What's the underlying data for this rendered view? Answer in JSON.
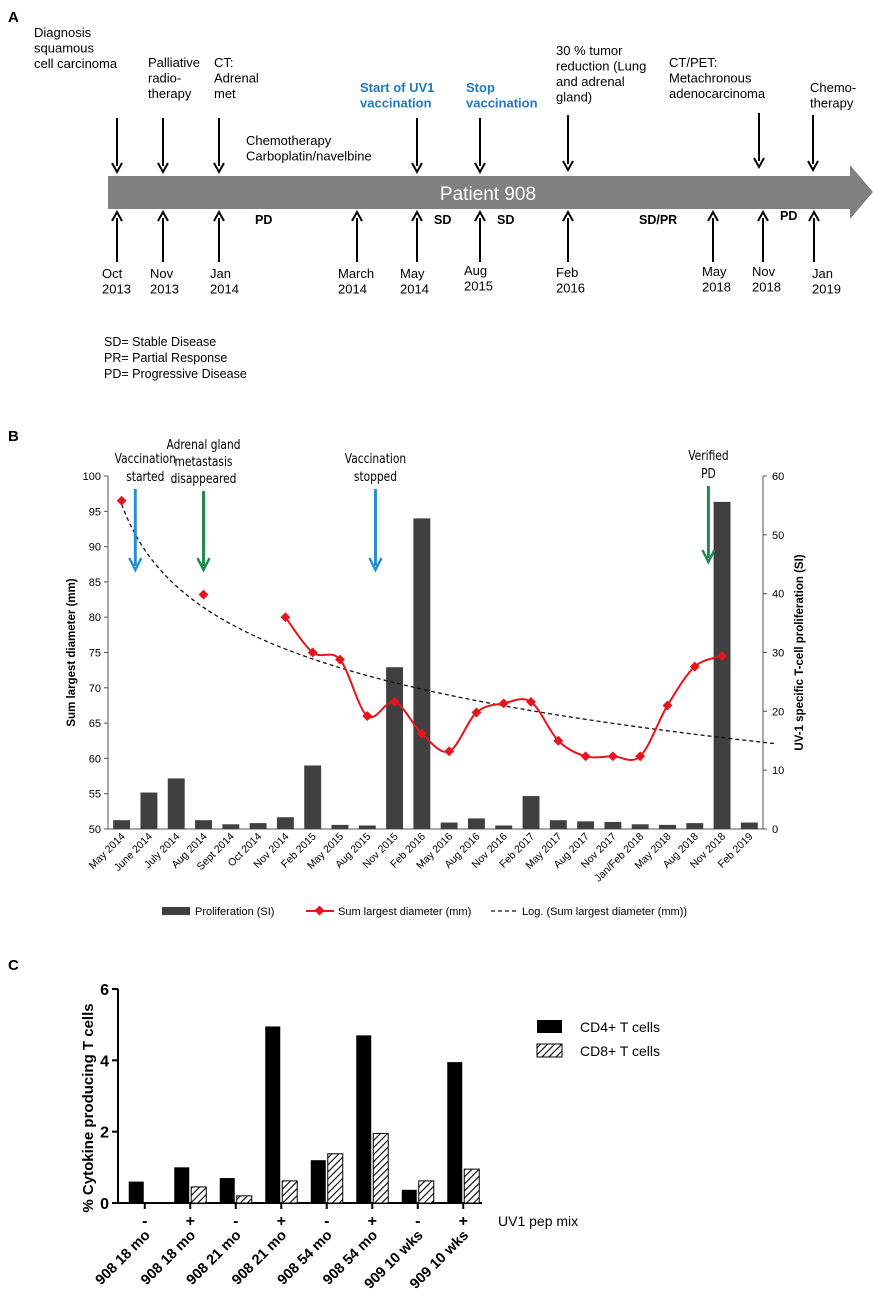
{
  "panelA": {
    "label": "A",
    "timeline_title": "Patient 908",
    "events_top": [
      {
        "lines": [
          "Diagnosis",
          "squamous",
          "cell carcinoma"
        ],
        "blue": false
      },
      {
        "lines": [
          "Palliative",
          "radio-",
          "therapy"
        ],
        "blue": false
      },
      {
        "lines": [
          "CT:",
          "Adrenal",
          "met"
        ],
        "blue": false
      },
      {
        "lines": [
          "Chemotherapy",
          "Carboplatin/navelbine"
        ],
        "blue": false
      },
      {
        "lines": [
          "Start of UV1",
          "vaccination"
        ],
        "blue": true
      },
      {
        "lines": [
          "Stop",
          "vaccination"
        ],
        "blue": true
      },
      {
        "lines": [
          "30 % tumor",
          "reduction (Lung",
          "and adrenal",
          "gland)"
        ],
        "blue": false
      },
      {
        "lines": [
          "CT/PET:",
          "Metachronous",
          "adenocarcinoma"
        ],
        "blue": false
      },
      {
        "lines": [
          "Chemo-",
          "therapy"
        ],
        "blue": false
      }
    ],
    "dates": [
      [
        "Oct",
        "2013"
      ],
      [
        "Nov",
        "2013"
      ],
      [
        "Jan",
        "2014"
      ],
      [
        "March",
        "2014"
      ],
      [
        "May",
        "2014"
      ],
      [
        "Aug",
        "2015"
      ],
      [
        "Feb",
        "2016"
      ],
      [
        "May",
        "2018"
      ],
      [
        "Nov",
        "2018"
      ],
      [
        "Jan",
        "2019"
      ]
    ],
    "statuses": [
      "PD",
      "SD",
      "SD",
      "SD/PR",
      "PD"
    ],
    "legend": [
      "SD= Stable Disease",
      "PR= Partial Response",
      "PD= Progressive Disease"
    ],
    "colors": {
      "arrow": "#808080",
      "blue_text": "#1f7ac0"
    }
  },
  "panelB": {
    "label": "B",
    "chart_data": {
      "type": "bar",
      "categories": [
        "May 2014",
        "June 2014",
        "July 2014",
        "Aug 2014",
        "Sept 2014",
        "Oct 2014",
        "Nov 2014",
        "Feb 2015",
        "May 2015",
        "Aug 2015",
        "Nov 2015",
        "Feb 2016",
        "May 2016",
        "Aug 2016",
        "Nov 2016",
        "Feb 2017",
        "May 2017",
        "Aug 2017",
        "Nov 2017",
        "Jan/Feb 2018",
        "May 2018",
        "Aug 2018",
        "Nov 2018",
        "Feb 2019"
      ],
      "series": [
        {
          "name": "Proliferation (SI)",
          "axis": "right",
          "kind": "bar",
          "values": [
            1.5,
            6.2,
            8.6,
            1.5,
            0.8,
            1.0,
            2.0,
            10.8,
            0.7,
            0.6,
            27.5,
            52.8,
            1.1,
            1.8,
            0.6,
            5.6,
            1.5,
            1.3,
            1.2,
            0.8,
            0.7,
            1.0,
            55.6,
            1.1
          ]
        },
        {
          "name": "Sum largest diameter (mm)",
          "axis": "left",
          "kind": "line",
          "points": [
            [
              0,
              96.5
            ],
            [
              3,
              83.2
            ],
            [
              6,
              80.0
            ],
            [
              7,
              75.0
            ],
            [
              8,
              74.0
            ],
            [
              9,
              66.0
            ],
            [
              10,
              68.0
            ],
            [
              11,
              63.5
            ],
            [
              12,
              61.0
            ],
            [
              13,
              66.5
            ],
            [
              14,
              67.8
            ],
            [
              15,
              68.0
            ],
            [
              16,
              62.5
            ],
            [
              17,
              60.3
            ],
            [
              18,
              60.3
            ],
            [
              19,
              60.3
            ],
            [
              20,
              67.5
            ],
            [
              21,
              73.0
            ],
            [
              22,
              74.5
            ]
          ],
          "color": "#e8141c"
        },
        {
          "name": "Log. (Sum largest diameter (mm))",
          "axis": "left",
          "kind": "trendline",
          "style": "dashed",
          "start": 96.0,
          "end": 62.5
        }
      ],
      "ylabel_left": "Sum largest diameter (mm)",
      "ylim_left": [
        50,
        100
      ],
      "yticks_left": [
        50,
        55,
        60,
        65,
        70,
        75,
        80,
        85,
        90,
        95,
        100
      ],
      "ylabel_right": "UV-1 specific T-cell proliferation (SI)",
      "ylim_right": [
        0,
        60
      ],
      "yticks_right": [
        0,
        10,
        20,
        30,
        40,
        50,
        60
      ],
      "legend_position": "bottom",
      "annotations": [
        {
          "lines": [
            "Vaccination",
            "started"
          ],
          "index": 0.5,
          "color": "#2a8fd1"
        },
        {
          "lines": [
            "Adrenal gland",
            "metastasis",
            "disappeared"
          ],
          "index": 3.0,
          "color": "#218a4e"
        },
        {
          "lines": [
            "Vaccination",
            "stopped"
          ],
          "index": 9.3,
          "color": "#2a8fd1"
        },
        {
          "lines": [
            "Verified",
            "PD"
          ],
          "index": 21.5,
          "color": "#218a4e"
        }
      ]
    },
    "colors": {
      "bar": "#404040"
    }
  },
  "panelC": {
    "label": "C",
    "chart_data": {
      "type": "bar",
      "categories": [
        "908 18 mo",
        "908 18 mo",
        "908 21 mo",
        "908 21 mo",
        "908 54 mo",
        "908 54 mo",
        "909 10 wks",
        "909 10 wks"
      ],
      "pep_mix": [
        "-",
        "+",
        "-",
        "+",
        "-",
        "+",
        "-",
        "+"
      ],
      "pep_mix_label": "UV1 pep mix",
      "series": [
        {
          "name": "CD4+ T cells",
          "values": [
            0.6,
            1.0,
            0.7,
            4.95,
            1.2,
            4.7,
            0.37,
            3.95
          ]
        },
        {
          "name": "CD8+ T cells",
          "values": [
            0.0,
            0.45,
            0.2,
            0.62,
            1.38,
            1.95,
            0.62,
            0.95
          ]
        }
      ],
      "ylabel": "% Cytokine producing T cells",
      "ylim": [
        0,
        6
      ],
      "yticks": [
        0,
        2,
        4,
        6
      ],
      "legend_position": "top-right"
    }
  }
}
